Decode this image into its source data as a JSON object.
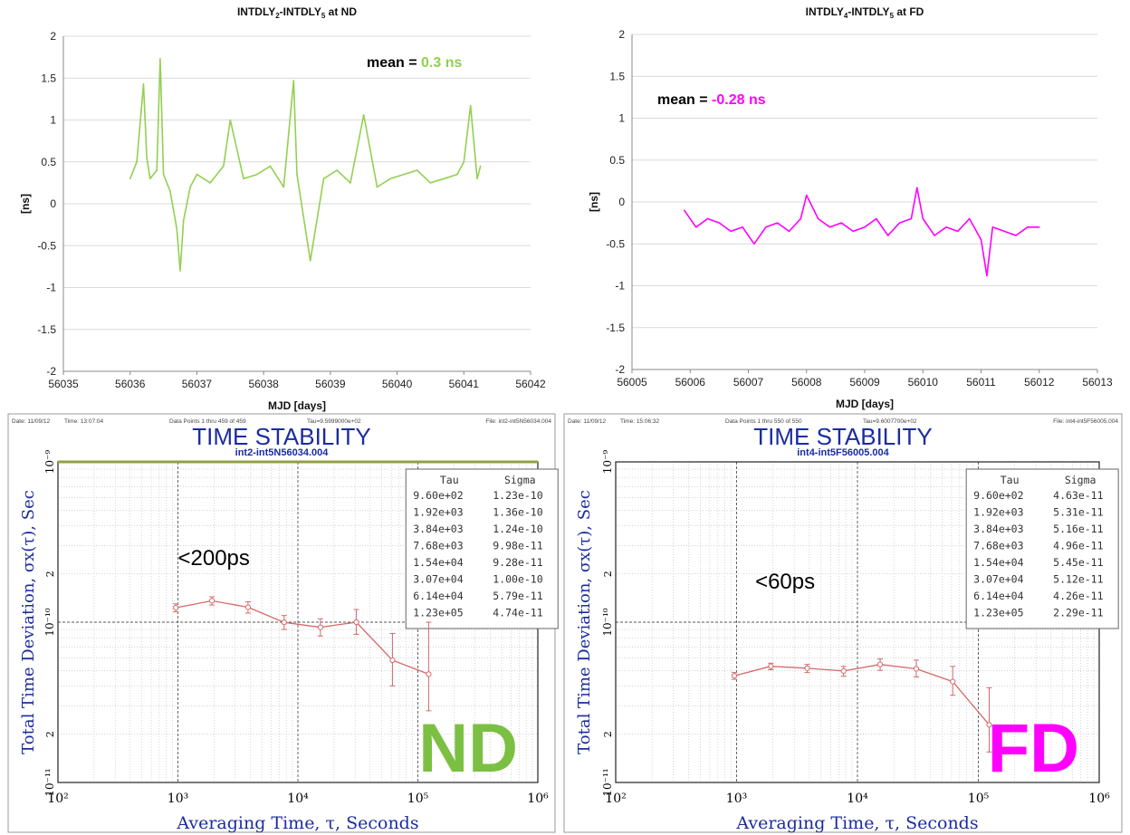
{
  "chart_data": [
    {
      "type": "line",
      "title": "INTDLY2-INTDLY5 at ND",
      "title_main": "INTDLY",
      "title_sub1": "2",
      "title_mid": "-INTDLY",
      "title_sub2": "5",
      "title_tail": " at ND",
      "xlabel": "MJD [days]",
      "ylabel": "[ns]",
      "xlim": [
        56035,
        56042
      ],
      "ylim": [
        -2,
        2
      ],
      "xticks": [
        "56035",
        "56036",
        "56037",
        "56038",
        "56039",
        "56040",
        "56041",
        "56042"
      ],
      "yticks": [
        "2",
        "1.5",
        "1",
        "0.5",
        "0",
        "-0.5",
        "-1",
        "-1.5",
        "-2"
      ],
      "annotation_label": "mean = ",
      "annotation_value": "0.3 ns",
      "series": [
        {
          "color": "#92D050",
          "x": [
            56036.0,
            56036.1,
            56036.2,
            56036.25,
            56036.3,
            56036.4,
            56036.45,
            56036.5,
            56036.6,
            56036.7,
            56036.75,
            56036.8,
            56036.9,
            56037.0,
            56037.2,
            56037.4,
            56037.5,
            56037.7,
            56037.9,
            56038.1,
            56038.3,
            56038.45,
            56038.5,
            56038.7,
            56038.9,
            56039.1,
            56039.3,
            56039.5,
            56039.7,
            56039.9,
            56040.1,
            56040.3,
            56040.5,
            56040.7,
            56040.9,
            56041.0,
            56041.1,
            56041.2,
            56041.25
          ],
          "y": [
            0.3,
            0.5,
            1.43,
            0.55,
            0.3,
            0.4,
            1.73,
            0.35,
            0.15,
            -0.3,
            -0.8,
            -0.2,
            0.2,
            0.35,
            0.25,
            0.45,
            1.0,
            0.3,
            0.35,
            0.45,
            0.2,
            1.47,
            0.35,
            -0.68,
            0.3,
            0.4,
            0.25,
            1.06,
            0.2,
            0.3,
            0.35,
            0.4,
            0.25,
            0.3,
            0.35,
            0.5,
            1.17,
            0.3,
            0.45
          ]
        }
      ]
    },
    {
      "type": "line",
      "title": "INTDLY4-INTDLY5 at FD",
      "title_main": "INTDLY",
      "title_sub1": "4",
      "title_mid": "-INTDLY",
      "title_sub2": "5",
      "title_tail": " at FD",
      "xlabel": "MJD [days]",
      "ylabel": "[ns]",
      "xlim": [
        56005,
        56013
      ],
      "ylim": [
        -2,
        2
      ],
      "xticks": [
        "56005",
        "56006",
        "56007",
        "56008",
        "56009",
        "56010",
        "56011",
        "56012",
        "56013"
      ],
      "yticks": [
        "2",
        "1.5",
        "1",
        "0.5",
        "0",
        "-0.5",
        "-1",
        "-1.5",
        "-2"
      ],
      "annotation_label": "mean = ",
      "annotation_value": "-0.28 ns",
      "series": [
        {
          "color": "#FF00FF",
          "x": [
            56005.9,
            56006.1,
            56006.3,
            56006.5,
            56006.7,
            56006.9,
            56007.1,
            56007.3,
            56007.5,
            56007.7,
            56007.9,
            56008.0,
            56008.2,
            56008.4,
            56008.6,
            56008.8,
            56009.0,
            56009.2,
            56009.4,
            56009.6,
            56009.8,
            56009.9,
            56010.0,
            56010.2,
            56010.4,
            56010.6,
            56010.8,
            56011.0,
            56011.1,
            56011.2,
            56011.4,
            56011.6,
            56011.8,
            56012.0
          ],
          "y": [
            -0.1,
            -0.3,
            -0.2,
            -0.25,
            -0.35,
            -0.3,
            -0.5,
            -0.3,
            -0.25,
            -0.35,
            -0.2,
            0.08,
            -0.2,
            -0.3,
            -0.25,
            -0.35,
            -0.3,
            -0.2,
            -0.4,
            -0.25,
            -0.2,
            0.17,
            -0.2,
            -0.4,
            -0.3,
            -0.35,
            -0.2,
            -0.45,
            -0.88,
            -0.3,
            -0.35,
            -0.4,
            -0.3,
            -0.3
          ]
        }
      ]
    },
    {
      "type": "line",
      "header_date": "Date: 11/09/12",
      "header_time": "Time: 13:07:04",
      "header_points": "Data Points 1 thru 459 of 459",
      "header_tau": "Tau=9.5999000e+02",
      "header_file": "File: int2-int5N56034.004",
      "title": "TIME STABILITY",
      "subtitle": "int2-int5N56034.004",
      "xlabel": "Averaging Time, τ, Seconds",
      "ylabel": "Total Time Deviation, σx(τ), Sec",
      "x_scale": "log",
      "y_scale": "log",
      "xticks": [
        "10²",
        "10³",
        "10⁴",
        "10⁵",
        "10⁶"
      ],
      "yticks": [
        "10⁻⁹",
        "2",
        "10⁻¹⁰",
        "2",
        "10⁻¹¹"
      ],
      "annotation": "<200ps",
      "badge": "ND",
      "badge_color": "#7CC043",
      "table_headers": [
        "Tau",
        "Sigma"
      ],
      "table_rows": [
        [
          "9.60e+02",
          "1.23e-10"
        ],
        [
          "1.92e+03",
          "1.36e-10"
        ],
        [
          "3.84e+03",
          "1.24e-10"
        ],
        [
          "7.68e+03",
          "9.98e-11"
        ],
        [
          "1.54e+04",
          "9.28e-11"
        ],
        [
          "3.07e+04",
          "1.00e-10"
        ],
        [
          "6.14e+04",
          "5.79e-11"
        ],
        [
          "1.23e+05",
          "4.74e-11"
        ]
      ],
      "tau": [
        960,
        1920,
        3840,
        7680,
        15400,
        30700,
        61400,
        123000
      ],
      "sigma": [
        1.23e-10,
        1.36e-10,
        1.24e-10,
        9.98e-11,
        9.28e-11,
        1e-10,
        5.79e-11,
        4.74e-11
      ],
      "err_lo": [
        1.16e-10,
        1.28e-10,
        1.14e-10,
        9e-11,
        8.2e-11,
        8.4e-11,
        4e-11,
        2.8e-11
      ],
      "err_hi": [
        1.3e-10,
        1.44e-10,
        1.34e-10,
        1.1e-10,
        1.05e-10,
        1.2e-10,
        8.5e-11,
        1e-10
      ],
      "series_color": "#D46A6A"
    },
    {
      "type": "line",
      "header_date": "Date: 11/09/12",
      "header_time": "Time: 15:06:32",
      "header_points": "Data Points 1 thru 550 of 550",
      "header_tau": "Tau=9.6007700e+02",
      "header_file": "File: int4-int5F56005.004",
      "title": "TIME STABILITY",
      "subtitle": "int4-int5F56005.004",
      "xlabel": "Averaging Time, τ, Seconds",
      "ylabel": "Total Time Deviation, σx(τ), Sec",
      "x_scale": "log",
      "y_scale": "log",
      "xticks": [
        "10²",
        "10³",
        "10⁴",
        "10⁵",
        "10⁶"
      ],
      "yticks": [
        "10⁻⁹",
        "2",
        "10⁻¹⁰",
        "2",
        "10⁻¹¹"
      ],
      "annotation": "<60ps",
      "badge": "FD",
      "badge_color": "#FF00FF",
      "table_headers": [
        "Tau",
        "Sigma"
      ],
      "table_rows": [
        [
          "9.60e+02",
          "4.63e-11"
        ],
        [
          "1.92e+03",
          "5.31e-11"
        ],
        [
          "3.84e+03",
          "5.16e-11"
        ],
        [
          "7.68e+03",
          "4.96e-11"
        ],
        [
          "1.54e+04",
          "5.45e-11"
        ],
        [
          "3.07e+04",
          "5.12e-11"
        ],
        [
          "6.14e+04",
          "4.26e-11"
        ],
        [
          "1.23e+05",
          "2.29e-11"
        ]
      ],
      "tau": [
        960,
        1920,
        3840,
        7680,
        15400,
        30700,
        61400,
        123000
      ],
      "sigma": [
        4.63e-11,
        5.31e-11,
        5.16e-11,
        4.96e-11,
        5.45e-11,
        5.12e-11,
        4.26e-11,
        2.29e-11
      ],
      "err_lo": [
        4.4e-11,
        5.05e-11,
        4.85e-11,
        4.6e-11,
        5e-11,
        4.55e-11,
        3.5e-11,
        1.55e-11
      ],
      "err_hi": [
        4.85e-11,
        5.55e-11,
        5.45e-11,
        5.3e-11,
        5.9e-11,
        5.8e-11,
        5.3e-11,
        3.9e-11
      ],
      "series_color": "#D46A6A"
    }
  ]
}
